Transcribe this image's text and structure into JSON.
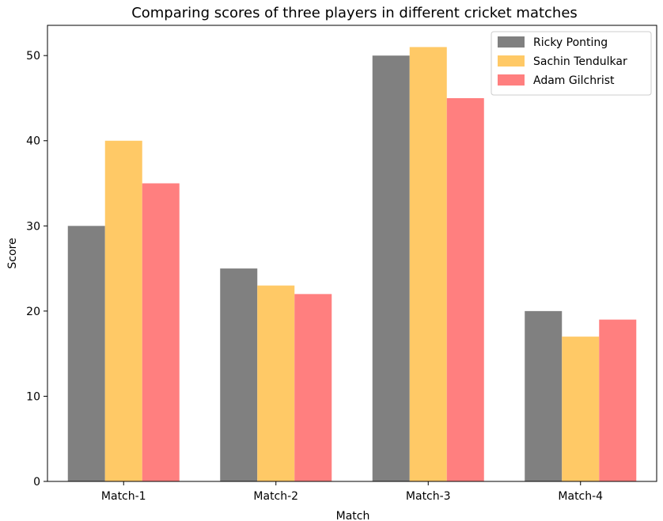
{
  "chart_data": {
    "type": "bar",
    "title": "Comparing scores of three players in different cricket matches",
    "xlabel": "Match",
    "ylabel": "Score",
    "categories": [
      "Match-1",
      "Match-2",
      "Match-3",
      "Match-4"
    ],
    "series": [
      {
        "name": "Ricky Ponting",
        "values": [
          30,
          25,
          50,
          20
        ],
        "color": "#808080"
      },
      {
        "name": "Sachin Tendulkar",
        "values": [
          40,
          23,
          51,
          17
        ],
        "color": "#ffc966"
      },
      {
        "name": "Adam Gilchrist",
        "values": [
          35,
          22,
          45,
          19
        ],
        "color": "#ff7f7f"
      }
    ],
    "ylim": [
      0,
      53.55
    ],
    "yticks": [
      0,
      10,
      20,
      30,
      40,
      50
    ],
    "grid": false,
    "legend_position": "top-right"
  }
}
